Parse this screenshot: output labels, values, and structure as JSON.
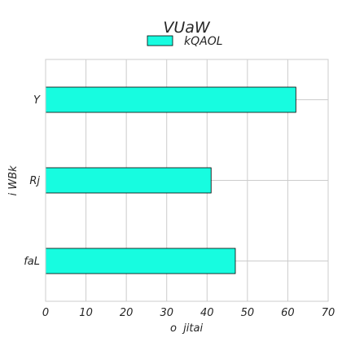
{
  "chart_data": {
    "type": "bar",
    "orientation": "horizontal",
    "title": "VUaW",
    "xlabel": "o  jitai",
    "ylabel": "i WBk",
    "categories": [
      "Y",
      "Rj",
      "faL"
    ],
    "series": [
      {
        "name": "kQAOL",
        "values": [
          62,
          41,
          47
        ],
        "color": "#17fce0"
      }
    ],
    "xlim": [
      0,
      70
    ],
    "xticks": [
      0,
      10,
      20,
      30,
      40,
      50,
      60,
      70
    ],
    "grid": true,
    "legend_position": "top-center"
  }
}
